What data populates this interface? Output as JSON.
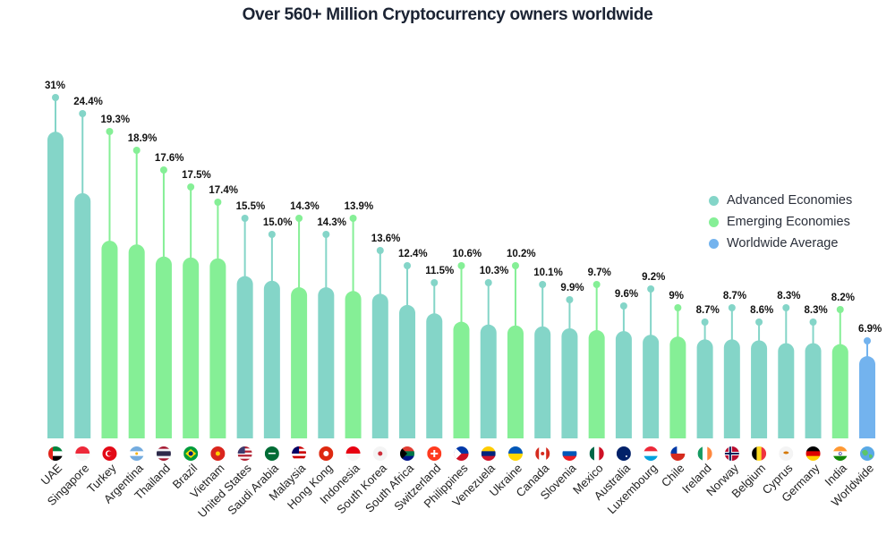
{
  "chart_data": {
    "type": "bar",
    "title": "Over 560+ Million Cryptocurrency owners worldwide",
    "xlabel": "",
    "ylabel": "",
    "ylim": [
      0,
      31
    ],
    "grid": false,
    "legend_position": "right",
    "value_format": "percent",
    "series_colors": {
      "advanced": "#84d5c8",
      "emerging": "#85ef96",
      "worldwide": "#73b3ee"
    },
    "legend": [
      {
        "key": "advanced",
        "label": "Advanced Economies"
      },
      {
        "key": "emerging",
        "label": "Emerging Economies"
      },
      {
        "key": "worldwide",
        "label": "Worldwide Average"
      }
    ],
    "categories": [
      "UAE",
      "Singapore",
      "Turkey",
      "Argentina",
      "Thailand",
      "Brazil",
      "Vietnam",
      "United States",
      "Saudi Arabia",
      "Malaysia",
      "Hong Kong",
      "Indonesia",
      "South Korea",
      "South Africa",
      "Switzerland",
      "Philippines",
      "Venezuela",
      "Ukraine",
      "Canada",
      "Slovenia",
      "Mexico",
      "Australia",
      "Luxembourg",
      "Chile",
      "Ireland",
      "Norway",
      "Belgium",
      "Cyprus",
      "Germany",
      "India",
      "Worldwide"
    ],
    "values": [
      31,
      24.4,
      19.3,
      18.9,
      17.6,
      17.5,
      17.4,
      15.5,
      15.0,
      14.3,
      14.3,
      13.9,
      13.6,
      12.4,
      11.5,
      10.6,
      10.3,
      10.2,
      10.1,
      9.9,
      9.7,
      9.6,
      9.2,
      9,
      8.7,
      8.7,
      8.6,
      8.3,
      8.3,
      8.2,
      6.9
    ],
    "value_labels": [
      "31%",
      "24.4%",
      "19.3%",
      "18.9%",
      "17.6%",
      "17.5%",
      "17.4%",
      "15.5%",
      "15.0%",
      "14.3%",
      "14.3%",
      "13.9%",
      "13.6%",
      "12.4%",
      "11.5%",
      "10.6%",
      "10.3%",
      "10.2%",
      "10.1%",
      "9.9%",
      "9.7%",
      "9.6%",
      "9.2%",
      "9%",
      "8.7%",
      "8.7%",
      "8.6%",
      "8.3%",
      "8.3%",
      "8.2%",
      "6.9%"
    ],
    "groups": [
      "advanced",
      "advanced",
      "emerging",
      "emerging",
      "emerging",
      "emerging",
      "emerging",
      "advanced",
      "advanced",
      "emerging",
      "advanced",
      "emerging",
      "advanced",
      "advanced",
      "advanced",
      "emerging",
      "advanced",
      "emerging",
      "advanced",
      "advanced",
      "emerging",
      "advanced",
      "advanced",
      "emerging",
      "advanced",
      "advanced",
      "advanced",
      "advanced",
      "advanced",
      "emerging",
      "worldwide"
    ],
    "flags": [
      "uae-flag-icon",
      "singapore-flag-icon",
      "turkey-flag-icon",
      "argentina-flag-icon",
      "thailand-flag-icon",
      "brazil-flag-icon",
      "vietnam-flag-icon",
      "united-states-flag-icon",
      "saudi-arabia-flag-icon",
      "malaysia-flag-icon",
      "hong-kong-flag-icon",
      "indonesia-flag-icon",
      "south-korea-flag-icon",
      "south-africa-flag-icon",
      "switzerland-flag-icon",
      "philippines-flag-icon",
      "venezuela-flag-icon",
      "ukraine-flag-icon",
      "canada-flag-icon",
      "slovenia-flag-icon",
      "mexico-flag-icon",
      "australia-flag-icon",
      "luxembourg-flag-icon",
      "chile-flag-icon",
      "ireland-flag-icon",
      "norway-flag-icon",
      "belgium-flag-icon",
      "cyprus-flag-icon",
      "germany-flag-icon",
      "india-flag-icon",
      "globe-icon"
    ]
  }
}
